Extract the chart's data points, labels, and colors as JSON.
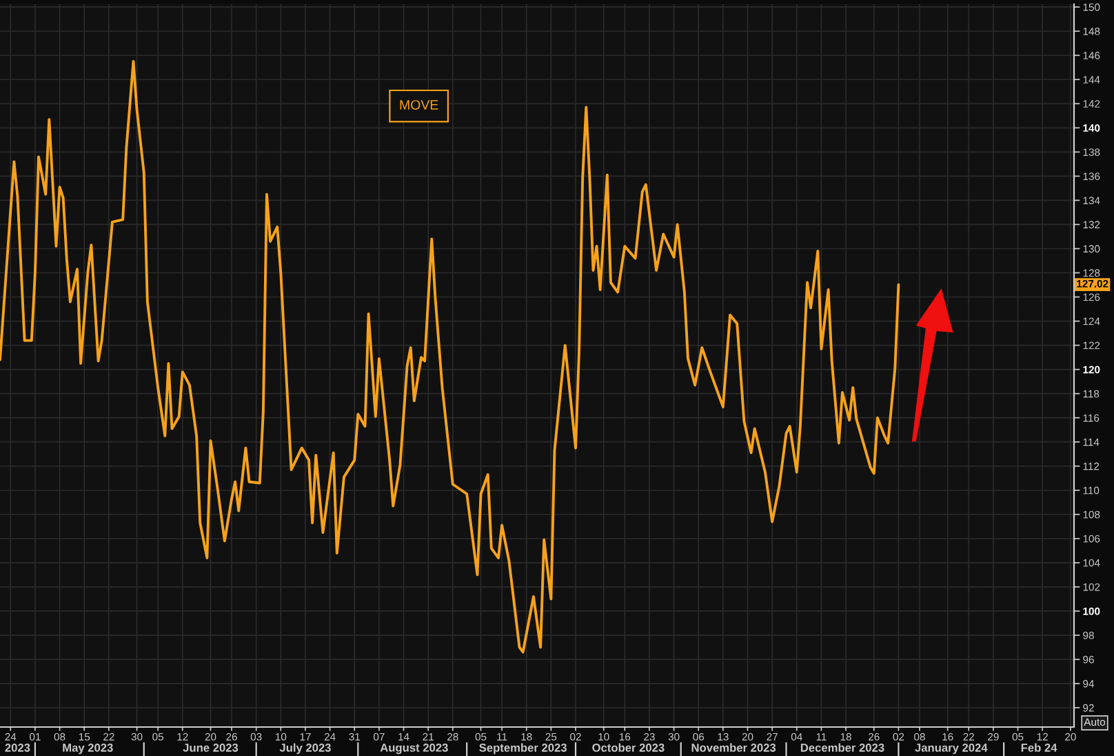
{
  "chart_data": {
    "type": "line",
    "x": [
      "2023-04-21",
      "2023-04-25",
      "2023-04-26",
      "2023-04-28",
      "2023-04-30",
      "2023-05-01",
      "2023-05-02",
      "2023-05-04",
      "2023-05-05",
      "2023-05-06",
      "2023-05-07",
      "2023-05-08",
      "2023-05-09",
      "2023-05-10",
      "2023-05-11",
      "2023-05-13",
      "2023-05-14",
      "2023-05-16",
      "2023-05-17",
      "2023-05-19",
      "2023-05-20",
      "2023-05-23",
      "2023-05-26",
      "2023-05-27",
      "2023-05-29",
      "2023-05-30",
      "2023-06-01",
      "2023-06-02",
      "2023-06-05",
      "2023-06-07",
      "2023-06-08",
      "2023-06-09",
      "2023-06-11",
      "2023-06-12",
      "2023-06-14",
      "2023-06-16",
      "2023-06-17",
      "2023-06-19",
      "2023-06-20",
      "2023-06-22",
      "2023-06-24",
      "2023-06-26",
      "2023-06-27",
      "2023-06-28",
      "2023-06-30",
      "2023-07-01",
      "2023-07-04",
      "2023-07-05",
      "2023-07-06",
      "2023-07-07",
      "2023-07-09",
      "2023-07-10",
      "2023-07-13",
      "2023-07-16",
      "2023-07-18",
      "2023-07-19",
      "2023-07-20",
      "2023-07-22",
      "2023-07-25",
      "2023-07-26",
      "2023-07-28",
      "2023-07-31",
      "2023-08-01",
      "2023-08-03",
      "2023-08-04",
      "2023-08-06",
      "2023-08-07",
      "2023-08-10",
      "2023-08-11",
      "2023-08-13",
      "2023-08-15",
      "2023-08-16",
      "2023-08-17",
      "2023-08-19",
      "2023-08-20",
      "2023-08-22",
      "2023-08-23",
      "2023-08-25",
      "2023-08-28",
      "2023-09-01",
      "2023-09-04",
      "2023-09-05",
      "2023-09-07",
      "2023-09-08",
      "2023-09-10",
      "2023-09-11",
      "2023-09-13",
      "2023-09-14",
      "2023-09-16",
      "2023-09-17",
      "2023-09-20",
      "2023-09-22",
      "2023-09-23",
      "2023-09-25",
      "2023-09-26",
      "2023-09-29",
      "2023-10-02",
      "2023-10-03",
      "2023-10-04",
      "2023-10-05",
      "2023-10-06",
      "2023-10-07",
      "2023-10-08",
      "2023-10-09",
      "2023-10-11",
      "2023-10-12",
      "2023-10-14",
      "2023-10-16",
      "2023-10-19",
      "2023-10-21",
      "2023-10-22",
      "2023-10-25",
      "2023-10-27",
      "2023-10-30",
      "2023-10-31",
      "2023-11-02",
      "2023-11-03",
      "2023-11-05",
      "2023-11-07",
      "2023-11-09",
      "2023-11-13",
      "2023-11-15",
      "2023-11-17",
      "2023-11-19",
      "2023-11-21",
      "2023-11-22",
      "2023-11-25",
      "2023-11-27",
      "2023-11-29",
      "2023-12-01",
      "2023-12-02",
      "2023-12-04",
      "2023-12-05",
      "2023-12-07",
      "2023-12-08",
      "2023-12-10",
      "2023-12-11",
      "2023-12-13",
      "2023-12-14",
      "2023-12-16",
      "2023-12-17",
      "2023-12-19",
      "2023-12-20",
      "2023-12-21",
      "2023-12-25",
      "2023-12-26",
      "2023-12-27",
      "2023-12-29",
      "2023-12-30",
      "2024-01-01",
      "2024-01-02"
    ],
    "series": [
      {
        "name": "MOVE",
        "color": "#f7a21b",
        "values": [
          120.8,
          137.2,
          134.3,
          122.4,
          122.4,
          128.0,
          137.6,
          134.5,
          140.7,
          135.5,
          130.2,
          135.1,
          134.2,
          129.2,
          125.6,
          128.3,
          120.5,
          128.0,
          130.3,
          120.7,
          122.4,
          132.2,
          132.4,
          138.3,
          145.5,
          141.5,
          136.3,
          125.6,
          118.5,
          114.5,
          120.5,
          115.1,
          116.1,
          119.8,
          118.7,
          114.5,
          107.3,
          104.4,
          114.1,
          110.1,
          105.8,
          109.3,
          110.7,
          108.3,
          113.5,
          110.7,
          110.6,
          116.5,
          134.5,
          130.6,
          131.8,
          128.0,
          111.7,
          113.5,
          112.5,
          107.3,
          112.9,
          106.5,
          113.1,
          104.8,
          111.1,
          112.5,
          116.3,
          115.3,
          124.6,
          116.1,
          120.9,
          112.5,
          108.7,
          112.1,
          120.3,
          121.8,
          117.4,
          121.0,
          120.7,
          130.8,
          126.0,
          118.5,
          110.5,
          109.7,
          103.0,
          109.7,
          111.3,
          105.2,
          104.4,
          107.1,
          104.2,
          101.8,
          97.0,
          96.6,
          101.2,
          97.0,
          105.9,
          101.0,
          113.3,
          122.0,
          113.5,
          121.6,
          135.9,
          141.7,
          135.9,
          128.2,
          130.2,
          126.6,
          136.1,
          127.2,
          126.4,
          130.2,
          129.2,
          134.7,
          135.3,
          128.2,
          131.2,
          129.3,
          132.0,
          126.4,
          120.9,
          118.7,
          121.8,
          120.1,
          116.9,
          124.5,
          123.8,
          115.7,
          113.1,
          115.1,
          111.5,
          107.4,
          110.3,
          114.7,
          115.3,
          111.5,
          115.3,
          127.2,
          125.1,
          129.8,
          121.7,
          126.6,
          120.7,
          113.9,
          118.1,
          115.8,
          118.5,
          115.9,
          111.9,
          111.4,
          116.0,
          114.5,
          113.9,
          120.1,
          127.02
        ]
      }
    ],
    "xlim": [
      "2023-04-21",
      "2024-02-21"
    ],
    "xticks": [
      {
        "value": "2023-04-24",
        "label": "24"
      },
      {
        "value": "2023-05-01",
        "label": "01"
      },
      {
        "value": "2023-05-08",
        "label": "08"
      },
      {
        "value": "2023-05-15",
        "label": "15"
      },
      {
        "value": "2023-05-22",
        "label": "22"
      },
      {
        "value": "2023-05-30",
        "label": "30"
      },
      {
        "value": "2023-06-05",
        "label": "05"
      },
      {
        "value": "2023-06-12",
        "label": "12"
      },
      {
        "value": "2023-06-20",
        "label": "20"
      },
      {
        "value": "2023-06-26",
        "label": "26"
      },
      {
        "value": "2023-07-03",
        "label": "03"
      },
      {
        "value": "2023-07-10",
        "label": "10"
      },
      {
        "value": "2023-07-17",
        "label": "17"
      },
      {
        "value": "2023-07-24",
        "label": "24"
      },
      {
        "value": "2023-07-31",
        "label": "31"
      },
      {
        "value": "2023-08-07",
        "label": "07"
      },
      {
        "value": "2023-08-14",
        "label": "14"
      },
      {
        "value": "2023-08-21",
        "label": "21"
      },
      {
        "value": "2023-08-28",
        "label": "28"
      },
      {
        "value": "2023-09-05",
        "label": "05"
      },
      {
        "value": "2023-09-11",
        "label": "11"
      },
      {
        "value": "2023-09-18",
        "label": "18"
      },
      {
        "value": "2023-09-25",
        "label": "25"
      },
      {
        "value": "2023-10-02",
        "label": "02"
      },
      {
        "value": "2023-10-10",
        "label": "10"
      },
      {
        "value": "2023-10-16",
        "label": "16"
      },
      {
        "value": "2023-10-23",
        "label": "23"
      },
      {
        "value": "2023-10-30",
        "label": "30"
      },
      {
        "value": "2023-11-06",
        "label": "06"
      },
      {
        "value": "2023-11-13",
        "label": "13"
      },
      {
        "value": "2023-11-20",
        "label": "20"
      },
      {
        "value": "2023-11-27",
        "label": "27"
      },
      {
        "value": "2023-12-04",
        "label": "04"
      },
      {
        "value": "2023-12-11",
        "label": "11"
      },
      {
        "value": "2023-12-18",
        "label": "18"
      },
      {
        "value": "2023-12-26",
        "label": "26"
      },
      {
        "value": "2024-01-02",
        "label": "02"
      },
      {
        "value": "2024-01-08",
        "label": "08"
      },
      {
        "value": "2024-01-16",
        "label": "16"
      },
      {
        "value": "2024-01-22",
        "label": "22"
      },
      {
        "value": "2024-01-29",
        "label": "29"
      },
      {
        "value": "2024-02-05",
        "label": "05"
      },
      {
        "value": "2024-02-12",
        "label": "12"
      },
      {
        "value": "2024-02-20",
        "label": "20"
      }
    ],
    "x2lim": [
      "2023-04-21",
      "2024-02-21"
    ],
    "x2ticks": [
      {
        "value": "2023-04-26",
        "label": "2023"
      },
      {
        "value": "2023-05-01",
        "label": null
      },
      {
        "value": "2023-05-16",
        "label": "May 2023"
      },
      {
        "value": "2023-06-01",
        "label": null
      },
      {
        "value": "2023-06-20",
        "label": "June 2023"
      },
      {
        "value": "2023-07-03",
        "label": null
      },
      {
        "value": "2023-07-17",
        "label": "July 2023"
      },
      {
        "value": "2023-08-01",
        "label": null
      },
      {
        "value": "2023-08-17",
        "label": "August 2023"
      },
      {
        "value": "2023-09-01",
        "label": null
      },
      {
        "value": "2023-09-17",
        "label": "September 2023"
      },
      {
        "value": "2023-10-02",
        "label": null
      },
      {
        "value": "2023-10-17",
        "label": "October 2023"
      },
      {
        "value": "2023-11-01",
        "label": null
      },
      {
        "value": "2023-11-16",
        "label": "November 2023"
      },
      {
        "value": "2023-12-01",
        "label": null
      },
      {
        "value": "2023-12-17",
        "label": "December 2023"
      },
      {
        "value": "2024-01-02",
        "label": null
      },
      {
        "value": "2024-01-17",
        "label": "January 2024"
      },
      {
        "value": "2024-02-01",
        "label": null
      },
      {
        "value": "2024-02-11",
        "label": "Feb 24"
      }
    ],
    "ylim": [
      90.4,
      150.24
    ],
    "yticks": [
      92,
      94,
      96,
      98,
      100,
      102,
      104,
      106,
      108,
      110,
      112,
      114,
      116,
      118,
      120,
      122,
      124,
      126,
      128,
      130,
      132,
      134,
      136,
      138,
      140,
      142,
      144,
      146,
      148,
      150
    ],
    "grid": true,
    "legend": "top",
    "annotations": [
      {
        "text": "127.02",
        "y": 127.02
      },
      "Auto"
    ]
  }
}
